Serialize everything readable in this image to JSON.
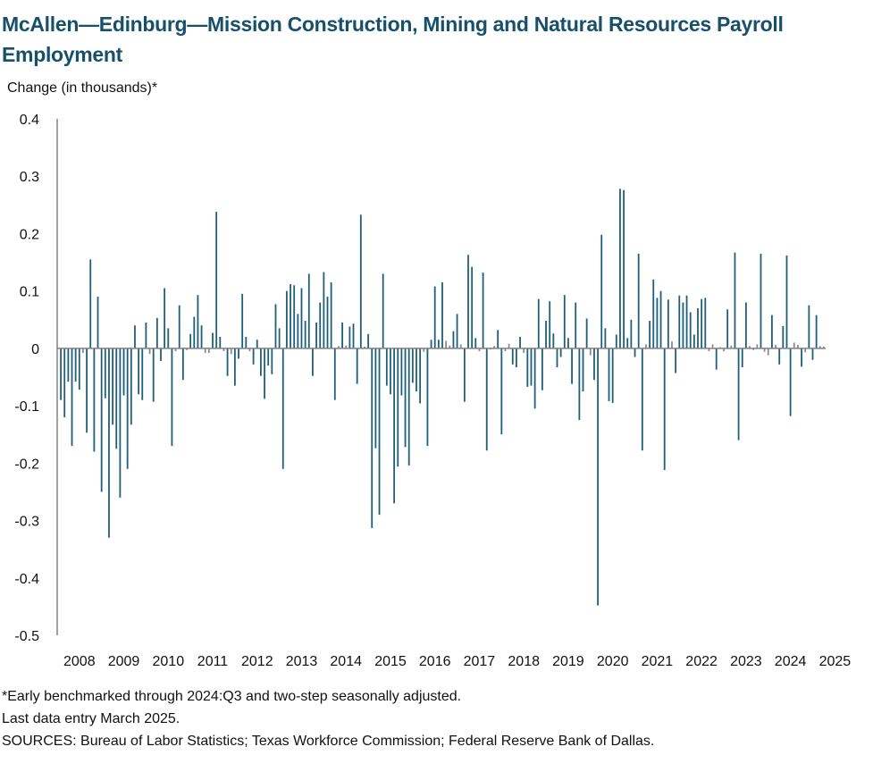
{
  "title": "McAllen—Edinburg—Mission Construction, Mining and Natural Resources Payroll Employment",
  "footnotes": {
    "note": "*Early benchmarked through 2024:Q3 and two-step seasonally adjusted.",
    "last_entry": "Last data entry March 2025.",
    "sources": "SOURCES: Bureau of Labor Statistics; Texas Workforce Commission; Federal Reserve Bank of Dallas."
  },
  "colors": {
    "bar": "#1f5f7a",
    "bar_small": "#8c8c8c",
    "axis": "#808080",
    "title": "#17506b"
  },
  "chart_data": {
    "type": "bar",
    "title": "McAllen—Edinburg—Mission Construction, Mining and Natural Resources Payroll Employment",
    "ylabel": "Change (in thousands)*",
    "xlabel": "",
    "ylim": [
      -0.5,
      0.4
    ],
    "yticks": [
      0.4,
      0.3,
      0.2,
      0.1,
      0,
      -0.1,
      -0.2,
      -0.3,
      -0.4,
      -0.5
    ],
    "ytick_labels": [
      "0.4",
      "0.3",
      "0.2",
      "0.1",
      "0",
      "-0.1",
      "-0.2",
      "-0.3",
      "-0.4",
      "-0.5"
    ],
    "xtick_labels": [
      "2008",
      "2009",
      "2010",
      "2011",
      "2012",
      "2013",
      "2014",
      "2015",
      "2016",
      "2017",
      "2018",
      "2019",
      "2020",
      "2021",
      "2022",
      "2023",
      "2024",
      "2025"
    ],
    "start": "2008-01",
    "end": "2025-03",
    "grid": false,
    "legend": "none",
    "values": [
      -0.09,
      -0.12,
      -0.058,
      -0.17,
      -0.058,
      -0.072,
      -0.008,
      -0.147,
      0.155,
      -0.18,
      0.09,
      -0.25,
      -0.087,
      -0.33,
      -0.133,
      -0.175,
      -0.26,
      -0.082,
      -0.21,
      -0.133,
      0.04,
      -0.08,
      -0.09,
      0.045,
      -0.01,
      -0.093,
      0.053,
      -0.022,
      0.105,
      0.035,
      -0.17,
      -0.005,
      0.075,
      -0.055,
      -0.003,
      0.025,
      0.055,
      0.093,
      0.04,
      -0.008,
      -0.008,
      0.027,
      0.238,
      0.02,
      -0.005,
      -0.048,
      -0.01,
      -0.065,
      -0.018,
      0.095,
      0.02,
      -0.005,
      -0.028,
      0.015,
      -0.048,
      -0.088,
      -0.03,
      -0.045,
      0.077,
      0.035,
      -0.21,
      0.1,
      0.112,
      0.11,
      0.06,
      0.105,
      0.048,
      0.13,
      -0.048,
      0.045,
      0.08,
      0.133,
      0.09,
      0.115,
      -0.09,
      0.004,
      0.045,
      0.005,
      0.038,
      0.043,
      -0.062,
      0.233,
      0.003,
      0.025,
      -0.313,
      -0.174,
      -0.29,
      0.13,
      -0.065,
      -0.08,
      -0.27,
      -0.206,
      -0.082,
      -0.172,
      -0.204,
      -0.06,
      -0.075,
      -0.096,
      -0.006,
      -0.17,
      0.015,
      0.108,
      0.015,
      0.115,
      0.013,
      0.005,
      0.03,
      0.06,
      0.007,
      -0.093,
      0.163,
      0.142,
      0.018,
      -0.005,
      0.132,
      -0.178,
      -0.002,
      0.004,
      0.032,
      -0.15,
      -0.005,
      0.008,
      -0.028,
      -0.033,
      0.02,
      -0.008,
      -0.067,
      -0.065,
      -0.105,
      0.086,
      -0.073,
      0.048,
      0.082,
      0.026,
      -0.033,
      -0.015,
      0.093,
      0.018,
      -0.062,
      0.08,
      -0.125,
      -0.075,
      0.052,
      -0.012,
      -0.055,
      -0.448,
      0.198,
      0.035,
      -0.092,
      -0.095,
      0.024,
      0.278,
      0.276,
      0.018,
      0.05,
      -0.015,
      0.165,
      -0.178,
      0.007,
      0.048,
      0.12,
      0.088,
      0.1,
      -0.212,
      0.085,
      0.012,
      -0.043,
      0.092,
      0.08,
      0.092,
      0.063,
      0.024,
      0.07,
      0.086,
      0.088,
      -0.005,
      0.007,
      -0.037,
      0.002,
      -0.005,
      0.068,
      0.005,
      0.167,
      -0.16,
      -0.033,
      0.08,
      0.004,
      -0.003,
      0.007,
      0.165,
      -0.006,
      -0.012,
      0.058,
      0.006,
      -0.028,
      0.039,
      0.162,
      -0.118,
      0.01,
      0.006,
      -0.032,
      -0.007,
      0.075,
      -0.02,
      0.058,
      0.004,
      0.003
    ]
  }
}
